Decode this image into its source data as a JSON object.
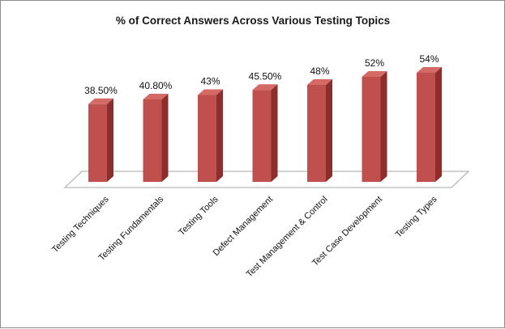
{
  "chart_data": {
    "type": "bar",
    "title": "% of Correct Answers Across Various Testing Topics",
    "categories": [
      "Testing Techniques",
      "Testing Fundamentals",
      "Testing Tools",
      "Defect Management",
      "Test Management & Control",
      "Test Case Development",
      "Testing Types"
    ],
    "values": [
      38.5,
      40.8,
      43,
      45.5,
      48,
      52,
      54
    ],
    "data_labels": [
      "38.50%",
      "40.80%",
      "43%",
      "45.50%",
      "48%",
      "52%",
      "54%"
    ],
    "xlabel": "",
    "ylabel": "",
    "ylim": [
      0,
      54
    ],
    "grid": false,
    "legend": "none",
    "style": "3d-column"
  },
  "colors": {
    "bar_front": "#c0504d",
    "bar_side": "#8c2e2b",
    "bar_top": "#d36a66",
    "floor_line": "#a6a6a6"
  }
}
